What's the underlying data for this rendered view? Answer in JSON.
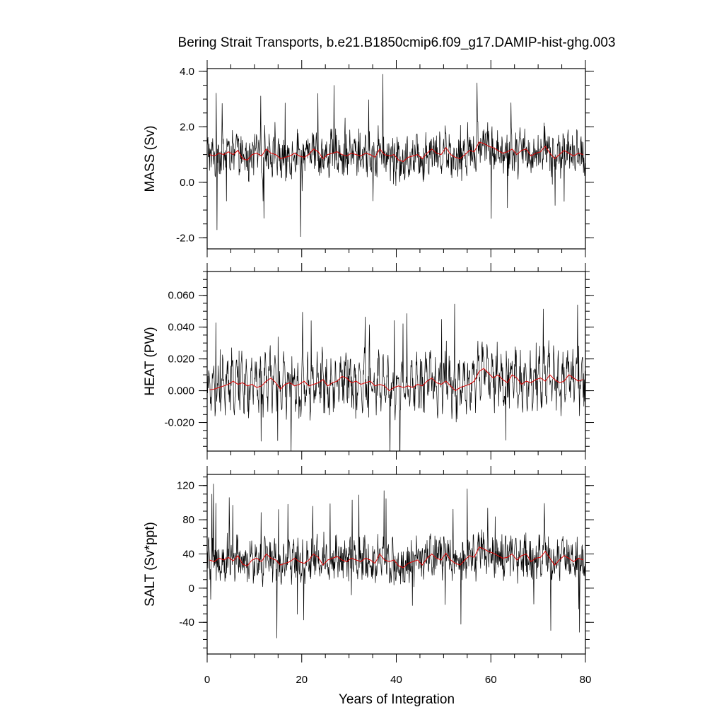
{
  "chart_data": {
    "type": "line",
    "title": "Bering Strait Transports, b.e21.B1850cmip6.f09_g17.DAMIP-hist-ghg.003",
    "xlabel": "Years of Integration",
    "xlim": [
      0,
      80
    ],
    "x_ticks": [
      0,
      20,
      40,
      60,
      80
    ],
    "x_tick_labels": [
      "0",
      "20",
      "40",
      "60",
      "80"
    ],
    "colors": {
      "raw": "#000000",
      "annual_mean": "#e00000"
    },
    "panels": [
      {
        "id": "mass",
        "ylabel": "MASS (Sv)",
        "ylim": [
          -2.4,
          4.1
        ],
        "y_ticks": [
          -2.0,
          0.0,
          2.0,
          4.0
        ],
        "y_tick_labels": [
          "-2.0",
          "0.0",
          "2.0",
          "4.0"
        ],
        "annual_mean": {
          "x": [
            0.5,
            1.5,
            2.5,
            3.5,
            4.5,
            5.5,
            6.5,
            7.5,
            8.5,
            9.5,
            10.5,
            11.5,
            12.5,
            13.5,
            14.5,
            15.5,
            16.5,
            17.5,
            18.5,
            19.5,
            20.5,
            21.5,
            22.5,
            23.5,
            24.5,
            25.5,
            26.5,
            27.5,
            28.5,
            29.5,
            30.5,
            31.5,
            32.5,
            33.5,
            34.5,
            35.5,
            36.5,
            37.5,
            38.5,
            39.5,
            40.5,
            41.5,
            42.5,
            43.5,
            44.5,
            45.5,
            46.5,
            47.5,
            48.5,
            49.5,
            50.5,
            51.5,
            52.5,
            53.5,
            54.5,
            55.5,
            56.5,
            57.5,
            58.5,
            59.5,
            60.5,
            61.5,
            62.5,
            63.5,
            64.5,
            65.5,
            66.5,
            67.5,
            68.5,
            69.5,
            70.5,
            71.5,
            72.5,
            73.5,
            74.5,
            75.5,
            76.5,
            77.5,
            78.5,
            79.5
          ],
          "y": [
            1.0,
            0.95,
            1.05,
            1.0,
            1.1,
            1.0,
            1.15,
            0.85,
            0.8,
            1.0,
            1.05,
            0.95,
            1.2,
            1.05,
            1.0,
            0.85,
            0.9,
            0.95,
            1.05,
            0.95,
            0.9,
            1.0,
            1.2,
            1.1,
            0.85,
            1.0,
            1.05,
            1.1,
            1.0,
            0.95,
            1.05,
            1.0,
            0.95,
            1.05,
            1.0,
            0.9,
            1.2,
            1.0,
            0.95,
            1.0,
            0.8,
            0.75,
            0.9,
            0.95,
            1.0,
            0.85,
            1.05,
            1.2,
            1.05,
            1.0,
            1.25,
            1.0,
            0.9,
            0.85,
            1.0,
            1.15,
            1.1,
            1.45,
            1.4,
            1.3,
            1.25,
            1.15,
            1.05,
            1.1,
            1.2,
            1.0,
            1.15,
            1.2,
            0.95,
            1.05,
            1.1,
            1.3,
            1.05,
            0.85,
            1.0,
            1.15,
            1.05,
            0.95,
            1.05,
            1.0
          ]
        }
      },
      {
        "id": "heat",
        "ylabel": "HEAT (PW)",
        "ylim": [
          -0.038,
          0.075
        ],
        "y_ticks": [
          -0.02,
          0.0,
          0.02,
          0.04,
          0.06
        ],
        "y_tick_labels": [
          "-0.020",
          "0.000",
          "0.020",
          "0.040",
          "0.060"
        ],
        "annual_mean": {
          "x": [
            0.5,
            1.5,
            2.5,
            3.5,
            4.5,
            5.5,
            6.5,
            7.5,
            8.5,
            9.5,
            10.5,
            11.5,
            12.5,
            13.5,
            14.5,
            15.5,
            16.5,
            17.5,
            18.5,
            19.5,
            20.5,
            21.5,
            22.5,
            23.5,
            24.5,
            25.5,
            26.5,
            27.5,
            28.5,
            29.5,
            30.5,
            31.5,
            32.5,
            33.5,
            34.5,
            35.5,
            36.5,
            37.5,
            38.5,
            39.5,
            40.5,
            41.5,
            42.5,
            43.5,
            44.5,
            45.5,
            46.5,
            47.5,
            48.5,
            49.5,
            50.5,
            51.5,
            52.5,
            53.5,
            54.5,
            55.5,
            56.5,
            57.5,
            58.5,
            59.5,
            60.5,
            61.5,
            62.5,
            63.5,
            64.5,
            65.5,
            66.5,
            67.5,
            68.5,
            69.5,
            70.5,
            71.5,
            72.5,
            73.5,
            74.5,
            75.5,
            76.5,
            77.5,
            78.5,
            79.5
          ],
          "y": [
            0.0005,
            0.001,
            0.002,
            0.003,
            0.004,
            0.006,
            0.004,
            0.005,
            0.003,
            0.004,
            0.002,
            0.003,
            0.006,
            0.008,
            0.005,
            0.001,
            0.004,
            0.005,
            0.003,
            0.004,
            0.006,
            0.003,
            0.004,
            0.005,
            0.007,
            0.003,
            0.005,
            0.006,
            0.009,
            0.008,
            0.005,
            0.006,
            0.004,
            0.005,
            0.006,
            0.003,
            0.004,
            0.003,
            0.0,
            0.002,
            0.003,
            0.002,
            0.003,
            0.002,
            0.004,
            0.003,
            0.006,
            0.008,
            0.005,
            0.004,
            0.006,
            0.003,
            0.0,
            0.002,
            0.003,
            0.004,
            0.006,
            0.012,
            0.014,
            0.011,
            0.008,
            0.01,
            0.007,
            0.005,
            0.01,
            0.008,
            0.004,
            0.006,
            0.005,
            0.007,
            0.008,
            0.006,
            0.01,
            0.007,
            0.005,
            0.006,
            0.01,
            0.008,
            0.006,
            0.007
          ]
        }
      },
      {
        "id": "salt",
        "ylabel": "SALT (Sv*ppt)",
        "ylim": [
          -77,
          133
        ],
        "y_ticks": [
          -40,
          0,
          40,
          80,
          120
        ],
        "y_tick_labels": [
          "-40",
          "0",
          "40",
          "80",
          "120"
        ],
        "annual_mean": {
          "x": [
            0.5,
            1.5,
            2.5,
            3.5,
            4.5,
            5.5,
            6.5,
            7.5,
            8.5,
            9.5,
            10.5,
            11.5,
            12.5,
            13.5,
            14.5,
            15.5,
            16.5,
            17.5,
            18.5,
            19.5,
            20.5,
            21.5,
            22.5,
            23.5,
            24.5,
            25.5,
            26.5,
            27.5,
            28.5,
            29.5,
            30.5,
            31.5,
            32.5,
            33.5,
            34.5,
            35.5,
            36.5,
            37.5,
            38.5,
            39.5,
            40.5,
            41.5,
            42.5,
            43.5,
            44.5,
            45.5,
            46.5,
            47.5,
            48.5,
            49.5,
            50.5,
            51.5,
            52.5,
            53.5,
            54.5,
            55.5,
            56.5,
            57.5,
            58.5,
            59.5,
            60.5,
            61.5,
            62.5,
            63.5,
            64.5,
            65.5,
            66.5,
            67.5,
            68.5,
            69.5,
            70.5,
            71.5,
            72.5,
            73.5,
            74.5,
            75.5,
            76.5,
            77.5,
            78.5,
            79.5
          ],
          "y": [
            33,
            31,
            35,
            33,
            36,
            32,
            38,
            28,
            26,
            33,
            35,
            31,
            40,
            35,
            33,
            27,
            29,
            31,
            35,
            31,
            29,
            33,
            40,
            36,
            27,
            33,
            35,
            37,
            33,
            31,
            35,
            33,
            31,
            35,
            33,
            29,
            40,
            33,
            31,
            33,
            26,
            24,
            29,
            31,
            33,
            27,
            35,
            40,
            35,
            33,
            41,
            33,
            29,
            27,
            33,
            38,
            36,
            48,
            46,
            43,
            41,
            38,
            35,
            36,
            40,
            33,
            38,
            40,
            31,
            35,
            36,
            43,
            35,
            27,
            33,
            38,
            35,
            31,
            35,
            33
          ]
        }
      }
    ]
  }
}
